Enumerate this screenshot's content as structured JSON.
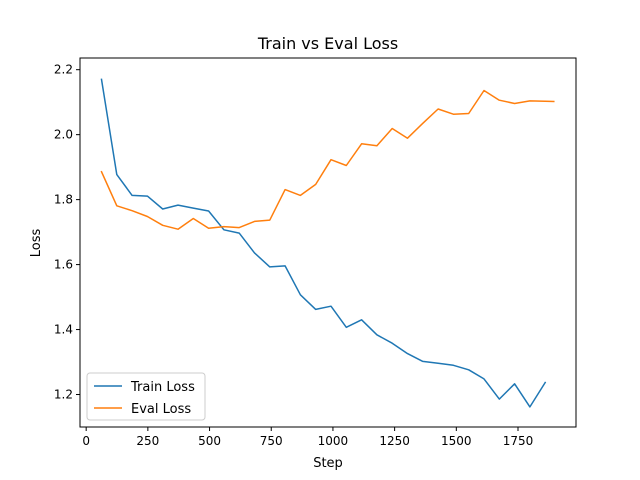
{
  "chart_data": {
    "type": "line",
    "title": "Train vs Eval Loss",
    "xlabel": "Step",
    "ylabel": "Loss",
    "xlim": [
      -25,
      1985
    ],
    "ylim": [
      1.1,
      2.236
    ],
    "xticks": [
      0,
      250,
      500,
      750,
      1000,
      1250,
      1500,
      1750
    ],
    "yticks": [
      1.2,
      1.4,
      1.6,
      1.8,
      2.0,
      2.2
    ],
    "xtick_labels": [
      "0",
      "250",
      "500",
      "750",
      "1000",
      "1250",
      "1500",
      "1750"
    ],
    "ytick_labels": [
      "1.2",
      "1.4",
      "1.6",
      "1.8",
      "2.0",
      "2.2"
    ],
    "grid": false,
    "legend_position": "lower-left",
    "series": [
      {
        "name": "Train Loss",
        "color": "#1f77b4",
        "x": [
          62,
          124,
          186,
          248,
          310,
          372,
          434,
          496,
          558,
          620,
          682,
          744,
          806,
          868,
          930,
          992,
          1054,
          1116,
          1178,
          1240,
          1302,
          1364,
          1426,
          1488,
          1550,
          1612,
          1674,
          1736,
          1798,
          1860
        ],
        "y": [
          2.17,
          1.877,
          1.813,
          1.811,
          1.771,
          1.783,
          1.774,
          1.765,
          1.707,
          1.697,
          1.636,
          1.593,
          1.596,
          1.507,
          1.462,
          1.472,
          1.407,
          1.43,
          1.384,
          1.358,
          1.326,
          1.302,
          1.296,
          1.29,
          1.276,
          1.248,
          1.186,
          1.233,
          1.162,
          1.237
        ]
      },
      {
        "name": "Eval Loss",
        "color": "#ff7f0e",
        "x": [
          62,
          124,
          186,
          248,
          310,
          372,
          434,
          496,
          558,
          620,
          682,
          744,
          806,
          868,
          930,
          992,
          1054,
          1116,
          1178,
          1240,
          1302,
          1364,
          1426,
          1488,
          1550,
          1612,
          1674,
          1736,
          1798,
          1860,
          1895
        ],
        "y": [
          1.886,
          1.781,
          1.766,
          1.748,
          1.721,
          1.709,
          1.742,
          1.712,
          1.717,
          1.714,
          1.733,
          1.737,
          1.831,
          1.813,
          1.847,
          1.923,
          1.905,
          1.972,
          1.966,
          2.019,
          1.989,
          2.035,
          2.079,
          2.063,
          2.065,
          2.136,
          2.106,
          2.096,
          2.104,
          2.103,
          2.102
        ]
      }
    ]
  }
}
